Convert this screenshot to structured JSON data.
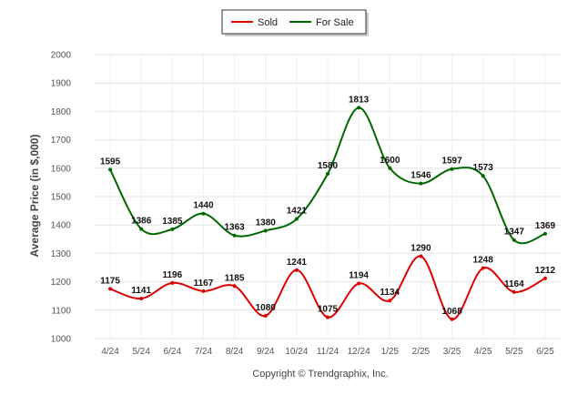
{
  "chart_data": {
    "type": "line",
    "categories": [
      "4/24",
      "5/24",
      "6/24",
      "7/24",
      "8/24",
      "9/24",
      "10/24",
      "11/24",
      "12/24",
      "1/25",
      "2/25",
      "3/25",
      "4/25",
      "5/25",
      "6/25"
    ],
    "series": [
      {
        "name": "Sold",
        "color": "#dd0000",
        "values": [
          1175,
          1141,
          1196,
          1167,
          1185,
          1080,
          1241,
          1075,
          1194,
          1134,
          1290,
          1068,
          1248,
          1164,
          1212
        ]
      },
      {
        "name": "For Sale",
        "color": "#006600",
        "values": [
          1595,
          1386,
          1385,
          1440,
          1363,
          1380,
          1421,
          1580,
          1813,
          1600,
          1546,
          1597,
          1573,
          1347,
          1369
        ]
      }
    ],
    "ylabel": "Average Price (in $,000)",
    "yticks": [
      "1000",
      "1100",
      "1200",
      "1300",
      "1400",
      "1500",
      "1600",
      "1700",
      "1800",
      "1900",
      "2000"
    ],
    "ylim": [
      1000,
      2000
    ],
    "grid": true,
    "legend": "top-center",
    "credit": "Copyright © Trendgraphix, Inc."
  }
}
